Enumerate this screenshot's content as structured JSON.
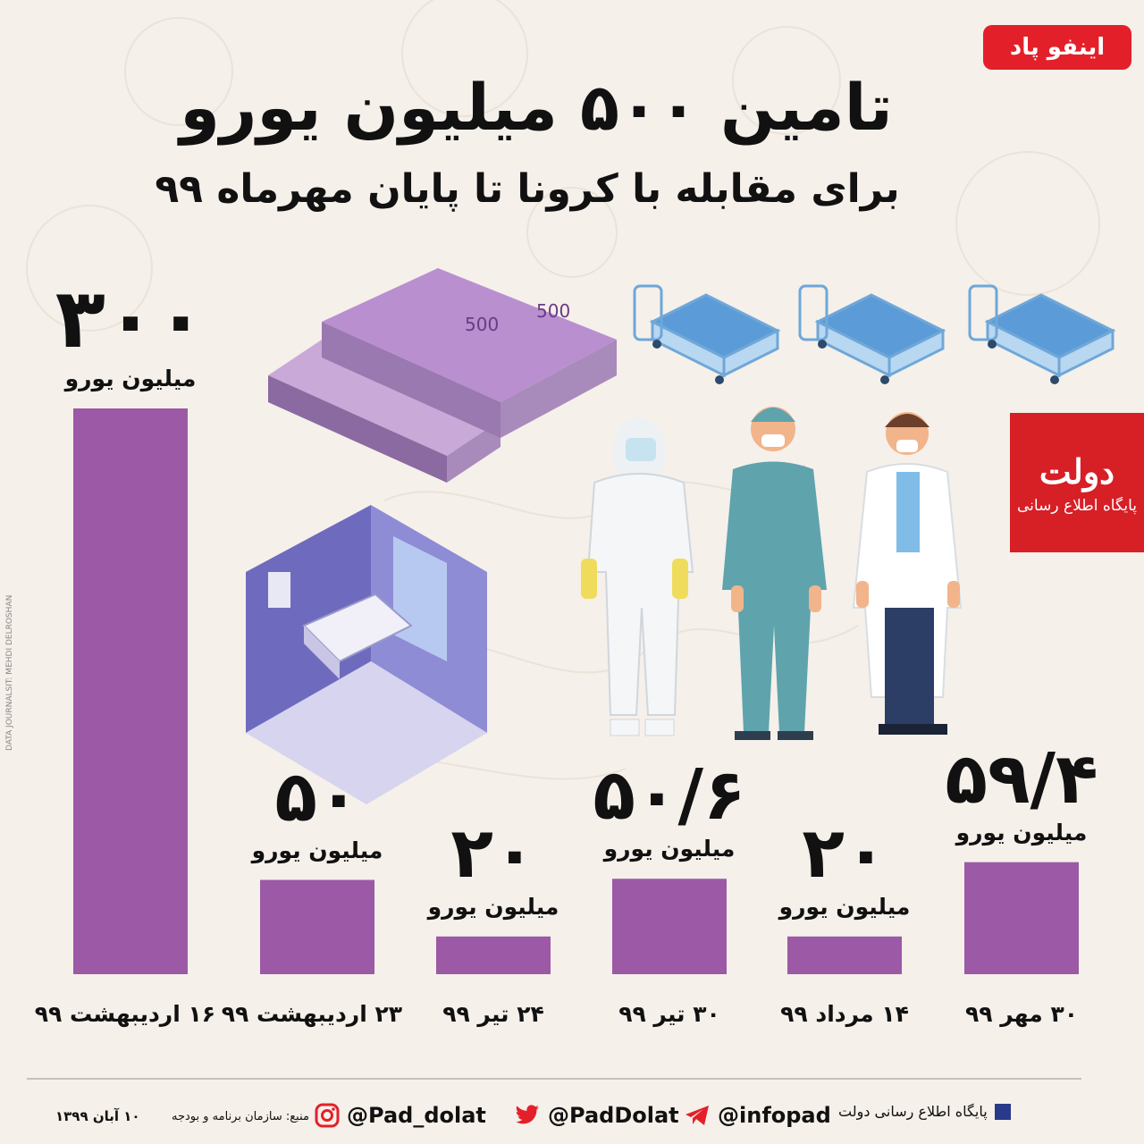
{
  "brand": {
    "name": "اینفو پاد"
  },
  "header": {
    "title": "تامین ۵۰۰ میلیون یورو",
    "subtitle": "برای مقابله با کرونا تا پایان مهرماه ۹۹"
  },
  "colors": {
    "bar": "#9b59a6",
    "accent": "#e3202a",
    "text": "#111111"
  },
  "chart_data": {
    "type": "bar",
    "unit": "میلیون یورو",
    "categories": [
      "۱۶ اردیبهشت ۹۹",
      "۲۳ اردیبهشت ۹۹",
      "۲۴ تیر ۹۹",
      "۳۰ تیر ۹۹",
      "۱۴ مرداد ۹۹",
      "۳۰ مهر ۹۹"
    ],
    "values": [
      300,
      50,
      20,
      50.6,
      20,
      59.4
    ],
    "value_labels": [
      "۳۰۰",
      "۵۰",
      "۲۰",
      "۵۰/۶",
      "۲۰",
      "۵۹/۴"
    ],
    "ylim": [
      0,
      300
    ],
    "grid": false,
    "legend": "none"
  },
  "logo": {
    "main": "دولت",
    "sub": "پایگاه اطلاع رسانی"
  },
  "credit": "DATA JOURNALSIT: MEHDI DELROSHAN",
  "footer": {
    "site_label": "پایگاه اطلاع رسانی دولت",
    "telegram": "@infopad",
    "twitter": "@PadDolat",
    "instagram": "@Pad_dolat",
    "source": "منبع: سازمان برنامه و بودجه",
    "date": "۱۰ آبان ۱۳۹۹"
  },
  "icons": [
    "euro-banknotes-icon",
    "hospital-bed-icon",
    "isolation-room-icon",
    "medical-staff-icon",
    "telegram-icon",
    "twitter-icon",
    "instagram-icon"
  ]
}
